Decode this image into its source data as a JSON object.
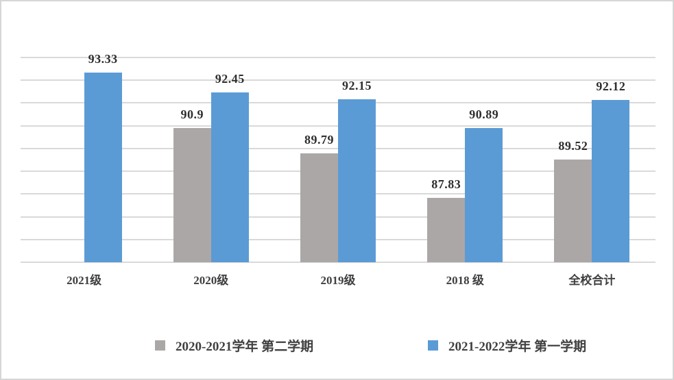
{
  "frame": {
    "background": "#FFFFFF",
    "border_color": "#D6D6D6"
  },
  "chart_data": {
    "type": "bar",
    "title": "",
    "xlabel": "",
    "ylabel": "",
    "categories": [
      "2021级",
      "2020级",
      "2019级",
      "2018 级",
      "全校合计"
    ],
    "series": [
      {
        "name": "2020-2021学年 第二学期",
        "color": "#ABA7A7",
        "values": [
          null,
          90.9,
          89.79,
          87.83,
          89.52
        ]
      },
      {
        "name": "2021-2022学年 第一学期",
        "color": "#5B9BD5",
        "values": [
          93.33,
          92.45,
          92.15,
          90.89,
          92.12
        ]
      }
    ],
    "value_labels": [
      [
        null,
        "90.9",
        "89.79",
        "87.83",
        "89.52"
      ],
      [
        "93.33",
        "92.45",
        "92.15",
        "90.89",
        "92.12"
      ]
    ],
    "ylim": [
      85,
      94
    ],
    "gridline_step": 1,
    "grid": "horizontal-only",
    "gridline_color": "#D9D9D9",
    "axis_labels_visible": false,
    "legend_position": "bottom",
    "colors": {
      "value_label": "#2E2E2E",
      "category_label": "#404040",
      "legend_text": "#404040"
    }
  }
}
